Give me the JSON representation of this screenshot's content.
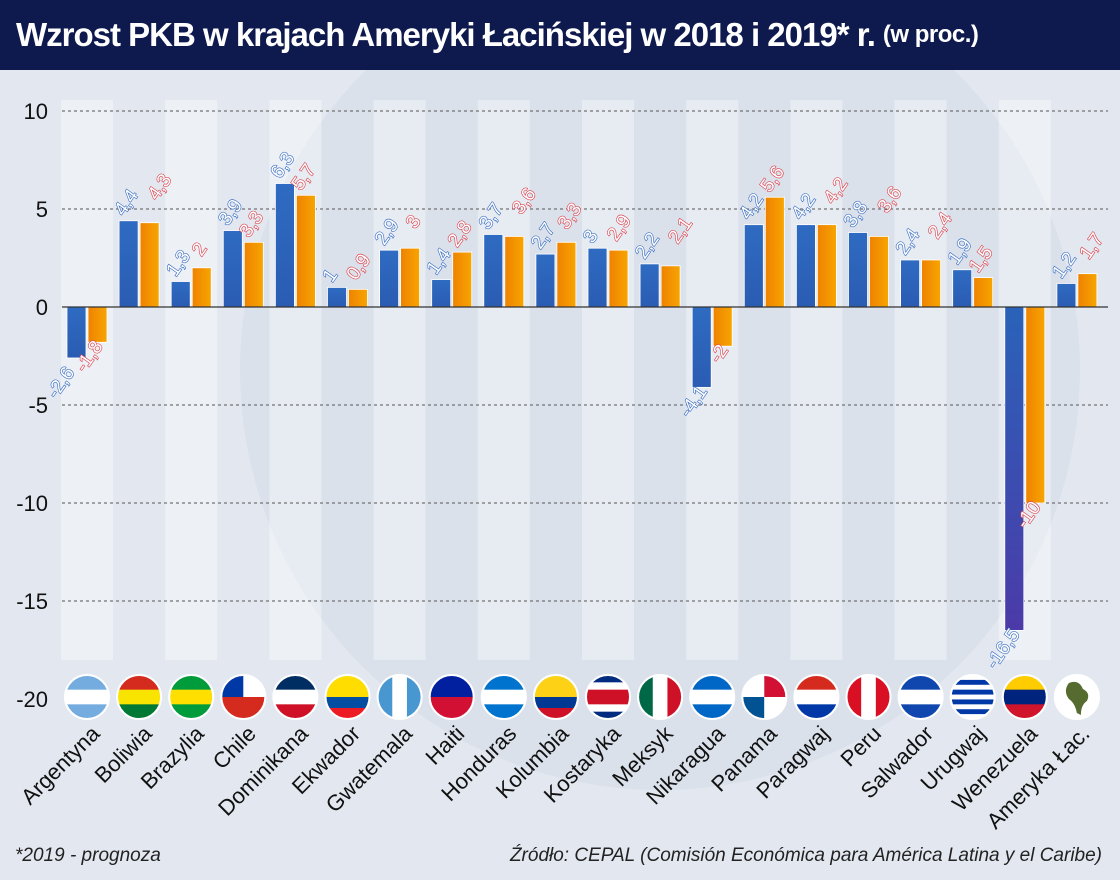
{
  "title": {
    "main": "Wzrost PKB w krajach Ameryki Łacińskiej w 2018 i 2019* r.",
    "unit": "(w proc.)"
  },
  "footer": {
    "note": "*2019 - prognoza",
    "source": "Źródło: CEPAL (Comisión Económica para América Latina y el Caribe)"
  },
  "colors": {
    "series_2018": "#2a63b9",
    "series_2019": "#f29000",
    "label_2018": "#3a6fc4",
    "label_2019": "#d9434f",
    "title_bg": "#0e1a4e"
  },
  "chart_data": {
    "type": "bar",
    "title": "Wzrost PKB w krajach Ameryki Łacińskiej w 2018 i 2019* r. (w proc.)",
    "ylim": [
      -20,
      10
    ],
    "yticks": [
      10,
      5,
      0,
      -5,
      -10,
      -15,
      -20
    ],
    "grid": true,
    "categories": [
      "Argentyna",
      "Boliwia",
      "Brazylia",
      "Chile",
      "Dominikana",
      "Ekwador",
      "Gwatemala",
      "Haiti",
      "Honduras",
      "Kolumbia",
      "Kostaryka",
      "Meksyk",
      "Nikaragua",
      "Panama",
      "Paragwaj",
      "Peru",
      "Salwador",
      "Urugwaj",
      "Wenezuela",
      "Ameryka Łac."
    ],
    "series": [
      {
        "values": [
          -2.6,
          4.4,
          1.3,
          3.9,
          6.3,
          1,
          2.9,
          1.4,
          3.7,
          2.7,
          3,
          2.2,
          -4.1,
          4.2,
          4.2,
          3.8,
          2.4,
          1.9,
          -16.5,
          1.2
        ],
        "labels": [
          "-2,6",
          "4,4",
          "1,3",
          "3,9",
          "6,3",
          "1",
          "2,9",
          "1,4",
          "3,7",
          "2,7",
          "3",
          "2,2",
          "-4,1",
          "4,2",
          "4,2",
          "3,8",
          "2,4",
          "1,9",
          "-16,5",
          "1,2"
        ]
      },
      {
        "values": [
          -1.8,
          4.3,
          2,
          3.3,
          5.7,
          0.9,
          3,
          2.8,
          3.6,
          3.3,
          2.9,
          2.1,
          -2,
          5.6,
          4.2,
          3.6,
          2.4,
          1.5,
          -10,
          1.7
        ],
        "labels": [
          "-1,8",
          "4,3",
          "2",
          "3,3",
          "5,7",
          "0,9",
          "3",
          "2,8",
          "3,6",
          "3,3",
          "2,9",
          "2,1",
          "-2",
          "5,6",
          "4,2",
          "3,6",
          "2,4",
          "1,5",
          "-10",
          "1,7"
        ]
      }
    ]
  },
  "flags": [
    {
      "icon": "flag-argentina-icon",
      "stripes": [
        "#74acdf",
        "#ffffff",
        "#74acdf"
      ]
    },
    {
      "icon": "flag-bolivia-icon",
      "stripes": [
        "#d52b1e",
        "#f9e300",
        "#007934"
      ]
    },
    {
      "icon": "flag-brazil-icon",
      "stripes": [
        "#009b3a",
        "#fedf00",
        "#009b3a"
      ]
    },
    {
      "icon": "flag-chile-icon",
      "stripes": [
        "#ffffff",
        "#d52b1e"
      ]
    },
    {
      "icon": "flag-dominican-icon",
      "stripes": [
        "#002d62",
        "#ffffff",
        "#ce1126"
      ]
    },
    {
      "icon": "flag-ecuador-icon",
      "stripes": [
        "#ffdd00",
        "#ffdd00",
        "#034ea2",
        "#ed1c24"
      ]
    },
    {
      "icon": "flag-guatemala-icon",
      "stripes": [
        "#4997d0",
        "#ffffff",
        "#4997d0"
      ],
      "vertical": true
    },
    {
      "icon": "flag-haiti-icon",
      "stripes": [
        "#00209f",
        "#d21034"
      ]
    },
    {
      "icon": "flag-honduras-icon",
      "stripes": [
        "#0073cf",
        "#ffffff",
        "#0073cf"
      ]
    },
    {
      "icon": "flag-colombia-icon",
      "stripes": [
        "#fcd116",
        "#fcd116",
        "#003893",
        "#ce1126"
      ]
    },
    {
      "icon": "flag-costa-rica-icon",
      "stripes": [
        "#002b7f",
        "#ffffff",
        "#ce1126",
        "#ce1126",
        "#ffffff",
        "#002b7f"
      ]
    },
    {
      "icon": "flag-mexico-icon",
      "stripes": [
        "#006847",
        "#ffffff",
        "#ce1126"
      ],
      "vertical": true
    },
    {
      "icon": "flag-nicaragua-icon",
      "stripes": [
        "#0067c6",
        "#ffffff",
        "#0067c6"
      ]
    },
    {
      "icon": "flag-panama-icon",
      "stripes": [
        "#ffffff",
        "#d21034",
        "#005293",
        "#ffffff"
      ],
      "quarters": true
    },
    {
      "icon": "flag-paraguay-icon",
      "stripes": [
        "#d52b1e",
        "#ffffff",
        "#0038a8"
      ]
    },
    {
      "icon": "flag-peru-icon",
      "stripes": [
        "#d91023",
        "#ffffff",
        "#d91023"
      ],
      "vertical": true
    },
    {
      "icon": "flag-el-salvador-icon",
      "stripes": [
        "#0f47af",
        "#ffffff",
        "#0f47af"
      ]
    },
    {
      "icon": "flag-uruguay-icon",
      "stripes": [
        "#ffffff",
        "#0038a8",
        "#ffffff",
        "#0038a8",
        "#ffffff",
        "#0038a8",
        "#ffffff",
        "#0038a8",
        "#ffffff"
      ]
    },
    {
      "icon": "flag-venezuela-icon",
      "stripes": [
        "#ffcc00",
        "#00247d",
        "#cf142b"
      ]
    },
    {
      "icon": "latin-america-map-icon",
      "stripes": [
        "#ffffff"
      ]
    }
  ]
}
